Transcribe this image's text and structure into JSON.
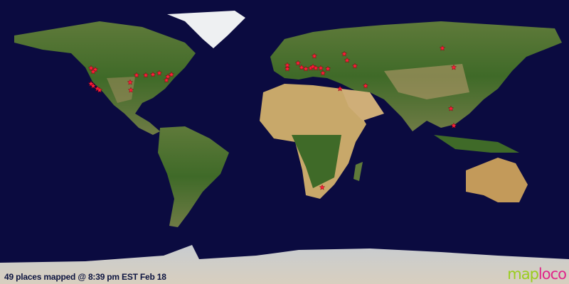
{
  "status": {
    "caption": "49 places mapped @ 8:39 pm EST Feb 18"
  },
  "logo": {
    "part1": "map",
    "part2": "loco",
    "color1": "#9acd1e",
    "color2": "#e0258a"
  },
  "colors": {
    "ocean": "#0b0b40",
    "marker": "#ff1f3a"
  },
  "icons": {
    "marker": "red-star-marker"
  }
}
